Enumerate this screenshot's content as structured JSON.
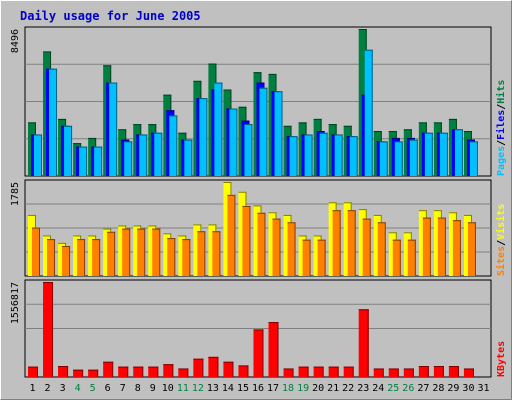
{
  "title": "Daily usage for June 2005",
  "colors": {
    "background": "#c0c0c0",
    "title_text": "#0000cc",
    "hits": "#008040",
    "files": "#0000ff",
    "pages": "#00c0ff",
    "visits": "#ffff00",
    "sites": "#ff8000",
    "kbytes": "#ff0000",
    "weekday_label": "#000000",
    "weekend_label": "#008040"
  },
  "chart_data": [
    {
      "type": "bar",
      "name": "hits-files-pages",
      "y_max_label": "8496",
      "ylim": [
        0,
        8496
      ],
      "legend": [
        {
          "text": "Pages",
          "color": "#00c0ff"
        },
        {
          "text": "/",
          "color": "#000000"
        },
        {
          "text": "Files",
          "color": "#0000ff"
        },
        {
          "text": "/",
          "color": "#000000"
        },
        {
          "text": "Hits",
          "color": "#008040"
        }
      ],
      "series": [
        {
          "name": "Hits",
          "values": [
            3100,
            7200,
            3300,
            1900,
            2200,
            6400,
            2700,
            3000,
            3000,
            4700,
            2500,
            5500,
            6500,
            5000,
            4000,
            6000,
            5900,
            2900,
            3100,
            3300,
            3000,
            2900,
            8496,
            2600,
            2600,
            2700,
            3100,
            3100,
            3300,
            2600,
            0
          ]
        },
        {
          "name": "Files",
          "values": [
            2400,
            6200,
            2900,
            1700,
            1700,
            5400,
            2100,
            2400,
            2500,
            3800,
            2100,
            4500,
            5000,
            3900,
            3200,
            5400,
            4900,
            2300,
            2400,
            2600,
            2400,
            2300,
            4700,
            2000,
            2200,
            2200,
            2500,
            2500,
            2700,
            2100,
            0
          ]
        },
        {
          "name": "Pages",
          "values": [
            2400,
            6200,
            2900,
            1700,
            1700,
            5400,
            2000,
            2400,
            2500,
            3500,
            2100,
            4500,
            5400,
            3900,
            3000,
            5100,
            4900,
            2300,
            2400,
            2500,
            2400,
            2300,
            7300,
            2000,
            2000,
            2100,
            2500,
            2500,
            2700,
            2000,
            0
          ]
        }
      ]
    },
    {
      "type": "bar",
      "name": "visits-sites",
      "y_max_label": "1785",
      "ylim": [
        0,
        1785
      ],
      "legend": [
        {
          "text": "Sites",
          "color": "#ff8000"
        },
        {
          "text": "/",
          "color": "#000000"
        },
        {
          "text": "Visits",
          "color": "#ffff00"
        }
      ],
      "series": [
        {
          "name": "Visits",
          "values": [
            1160,
            770,
            630,
            770,
            770,
            900,
            960,
            960,
            960,
            810,
            770,
            980,
            980,
            1785,
            1600,
            1340,
            1210,
            1160,
            770,
            770,
            1400,
            1400,
            1270,
            1160,
            830,
            830,
            1250,
            1250,
            1210,
            1160,
            0
          ]
        },
        {
          "name": "Sites",
          "values": [
            920,
            700,
            570,
            700,
            700,
            840,
            900,
            900,
            900,
            720,
            700,
            850,
            850,
            1540,
            1330,
            1200,
            1090,
            1020,
            690,
            690,
            1250,
            1250,
            1090,
            1020,
            690,
            690,
            1110,
            1110,
            1060,
            1020,
            0
          ]
        }
      ]
    },
    {
      "type": "bar",
      "name": "kbytes",
      "y_max_label": "1556817",
      "ylim": [
        0,
        1556817
      ],
      "legend": [
        {
          "text": "KBytes",
          "color": "#ff0000"
        }
      ],
      "series": [
        {
          "name": "KBytes",
          "values": [
            170000,
            1556817,
            180000,
            120000,
            120000,
            250000,
            170000,
            170000,
            170000,
            210000,
            140000,
            300000,
            330000,
            250000,
            190000,
            780000,
            900000,
            140000,
            170000,
            170000,
            170000,
            170000,
            1110000,
            140000,
            140000,
            140000,
            180000,
            180000,
            180000,
            140000,
            0
          ]
        }
      ]
    }
  ],
  "days": [
    {
      "label": "1",
      "weekend": false
    },
    {
      "label": "2",
      "weekend": false
    },
    {
      "label": "3",
      "weekend": false
    },
    {
      "label": "4",
      "weekend": true
    },
    {
      "label": "5",
      "weekend": true
    },
    {
      "label": "6",
      "weekend": false
    },
    {
      "label": "7",
      "weekend": false
    },
    {
      "label": "8",
      "weekend": false
    },
    {
      "label": "9",
      "weekend": false
    },
    {
      "label": "10",
      "weekend": false
    },
    {
      "label": "11",
      "weekend": true
    },
    {
      "label": "12",
      "weekend": true
    },
    {
      "label": "13",
      "weekend": false
    },
    {
      "label": "14",
      "weekend": false
    },
    {
      "label": "15",
      "weekend": false
    },
    {
      "label": "16",
      "weekend": false
    },
    {
      "label": "17",
      "weekend": false
    },
    {
      "label": "18",
      "weekend": true
    },
    {
      "label": "19",
      "weekend": true
    },
    {
      "label": "20",
      "weekend": false
    },
    {
      "label": "21",
      "weekend": false
    },
    {
      "label": "22",
      "weekend": false
    },
    {
      "label": "23",
      "weekend": false
    },
    {
      "label": "24",
      "weekend": false
    },
    {
      "label": "25",
      "weekend": true
    },
    {
      "label": "26",
      "weekend": true
    },
    {
      "label": "27",
      "weekend": false
    },
    {
      "label": "28",
      "weekend": false
    },
    {
      "label": "29",
      "weekend": false
    },
    {
      "label": "30",
      "weekend": false
    },
    {
      "label": "31",
      "weekend": false
    }
  ]
}
